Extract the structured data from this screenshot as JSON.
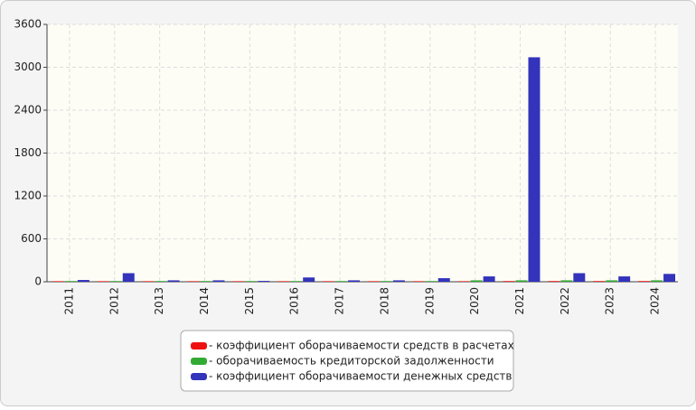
{
  "chart_data": {
    "type": "bar",
    "categories": [
      "2011",
      "2012",
      "2013",
      "2014",
      "2015",
      "2016",
      "2017",
      "2018",
      "2019",
      "2020",
      "2021",
      "2022",
      "2023",
      "2024"
    ],
    "series": [
      {
        "name": "- коэффициент оборачиваемости средств в расчетах",
        "color": "#ee1111",
        "values": [
          8,
          8,
          8,
          8,
          8,
          8,
          8,
          8,
          8,
          8,
          10,
          10,
          10,
          10
        ]
      },
      {
        "name": "- оборачиваемость кредиторской задолженности",
        "color": "#33aa33",
        "values": [
          10,
          10,
          10,
          10,
          10,
          10,
          10,
          10,
          10,
          20,
          20,
          20,
          20,
          20
        ]
      },
      {
        "name": "- коэффициент оборачиваемости денежных средств",
        "color": "#3333bb",
        "values": [
          25,
          120,
          20,
          20,
          12,
          60,
          20,
          20,
          50,
          75,
          3140,
          120,
          75,
          110
        ]
      }
    ],
    "ylim": [
      0,
      3600
    ],
    "yticks": [
      0,
      600,
      1200,
      1800,
      2400,
      3000,
      3600
    ],
    "grid": true
  }
}
